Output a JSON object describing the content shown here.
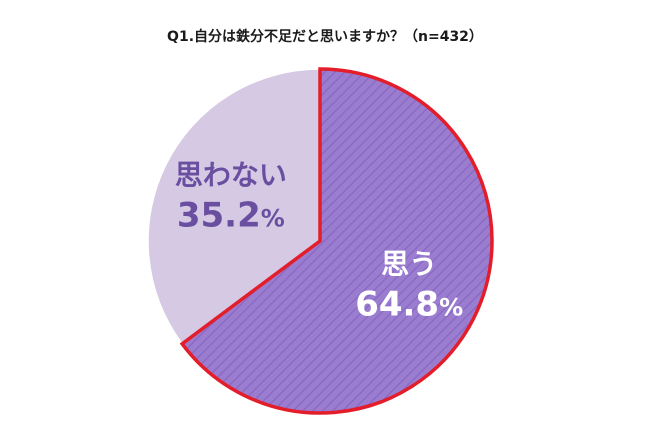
{
  "chart_data": {
    "type": "pie",
    "title": "Q1.自分は鉄分不足だと思いますか？（n=432）",
    "slices": [
      {
        "label": "思う",
        "value": 64.8,
        "display_value": "64.8",
        "unit": "%",
        "color": "#9b7dd0",
        "border_color": "#e31e2a",
        "label_color": "#ffffff",
        "pattern": "diagonal-stripes",
        "highlighted": true
      },
      {
        "label": "思わない",
        "value": 35.2,
        "display_value": "35.2",
        "unit": "%",
        "color": "#d5c9e4",
        "border_color": "#ffffff",
        "label_color": "#6a4fa0",
        "pattern": "none",
        "highlighted": false
      }
    ],
    "start_angle": "12 o'clock",
    "direction": "clockwise",
    "legend": "none"
  }
}
